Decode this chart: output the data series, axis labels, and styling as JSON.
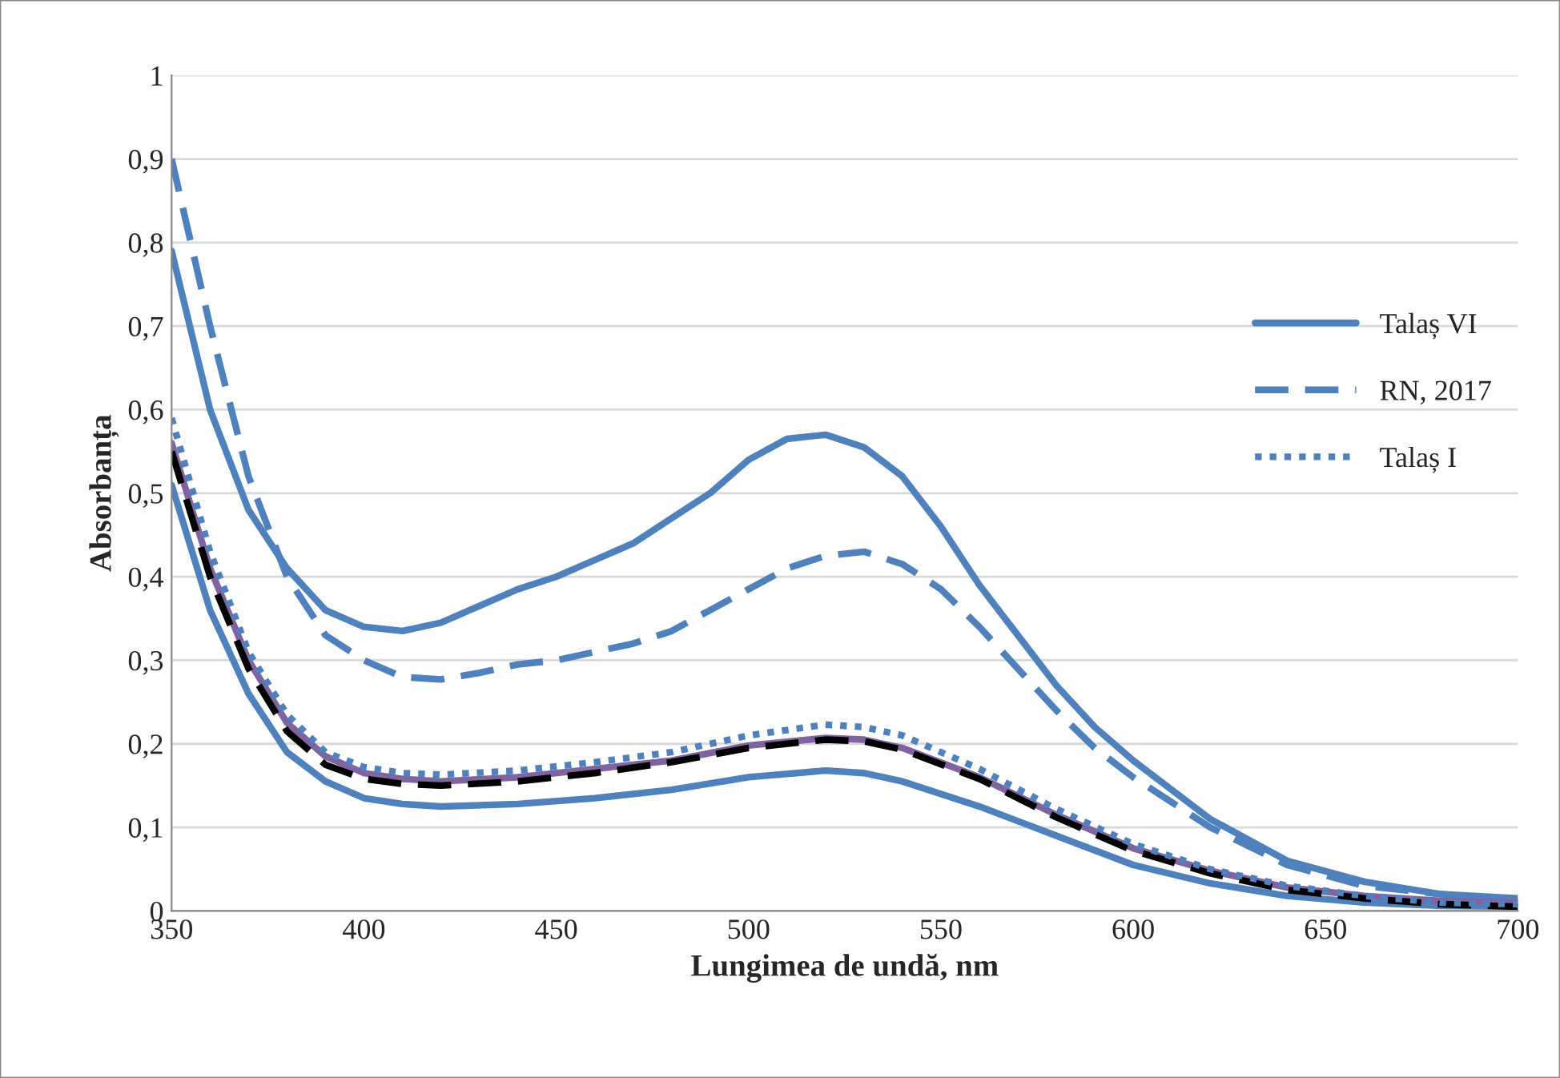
{
  "chart_data": {
    "type": "line",
    "xlabel": "Lungimea de undă, nm",
    "ylabel": "Absorbanța",
    "xlim": [
      350,
      700
    ],
    "xticks": [
      350,
      400,
      450,
      500,
      550,
      600,
      650,
      700
    ],
    "ylim": [
      0,
      1
    ],
    "yticks": [
      0,
      {
        "value": 0.1,
        "label": "0,1"
      },
      {
        "value": 0.2,
        "label": "0,2"
      },
      {
        "value": 0.3,
        "label": "0,3"
      },
      {
        "value": 0.4,
        "label": "0,4"
      },
      {
        "value": 0.5,
        "label": "0,5"
      },
      {
        "value": 0.6,
        "label": "0,6"
      },
      {
        "value": 0.7,
        "label": "0,7"
      },
      {
        "value": 0.8,
        "label": "0,8"
      },
      {
        "value": 0.9,
        "label": "0,9"
      },
      1
    ],
    "grid": "y",
    "legend": "right",
    "marker": "none",
    "series": [
      {
        "name": "Talaș VI",
        "color": "#4f81bd",
        "line_style": "solid",
        "x": [
          350,
          360,
          370,
          380,
          390,
          400,
          410,
          420,
          430,
          440,
          450,
          460,
          470,
          480,
          490,
          500,
          510,
          520,
          530,
          540,
          550,
          560,
          570,
          580,
          590,
          600,
          620,
          640,
          660,
          680,
          700
        ],
        "values": [
          0.79,
          0.6,
          0.48,
          0.41,
          0.36,
          0.34,
          0.335,
          0.345,
          0.365,
          0.385,
          0.4,
          0.42,
          0.44,
          0.47,
          0.5,
          0.54,
          0.565,
          0.57,
          0.555,
          0.52,
          0.46,
          0.39,
          0.33,
          0.27,
          0.22,
          0.18,
          0.11,
          0.06,
          0.035,
          0.02,
          0.015
        ]
      },
      {
        "name": "RN, 2017",
        "color": "#4f81bd",
        "line_style": "dashed",
        "x": [
          350,
          360,
          370,
          380,
          390,
          400,
          410,
          420,
          430,
          440,
          450,
          460,
          470,
          480,
          490,
          500,
          510,
          520,
          530,
          540,
          550,
          560,
          570,
          580,
          590,
          600,
          620,
          640,
          660,
          680,
          700
        ],
        "values": [
          0.9,
          0.7,
          0.52,
          0.4,
          0.33,
          0.3,
          0.28,
          0.277,
          0.285,
          0.295,
          0.3,
          0.31,
          0.32,
          0.335,
          0.36,
          0.385,
          0.41,
          0.425,
          0.43,
          0.415,
          0.385,
          0.34,
          0.29,
          0.24,
          0.195,
          0.16,
          0.1,
          0.055,
          0.03,
          0.02,
          0.012
        ]
      },
      {
        "color": "#4f81bd",
        "line_style": "solid",
        "x": [
          350,
          360,
          370,
          380,
          390,
          400,
          410,
          420,
          440,
          460,
          480,
          500,
          520,
          530,
          540,
          560,
          580,
          600,
          620,
          640,
          660,
          680,
          700
        ],
        "values": [
          0.51,
          0.36,
          0.26,
          0.19,
          0.155,
          0.135,
          0.128,
          0.125,
          0.128,
          0.135,
          0.145,
          0.16,
          0.168,
          0.165,
          0.155,
          0.125,
          0.09,
          0.055,
          0.033,
          0.018,
          0.01,
          0.006,
          0.005
        ]
      },
      {
        "color": "#8064a2",
        "line_style": "solid",
        "x": [
          350,
          360,
          370,
          380,
          390,
          400,
          410,
          420,
          440,
          460,
          480,
          500,
          520,
          530,
          540,
          560,
          580,
          600,
          620,
          640,
          660,
          680,
          700
        ],
        "values": [
          0.56,
          0.41,
          0.3,
          0.225,
          0.185,
          0.165,
          0.158,
          0.155,
          0.16,
          0.17,
          0.18,
          0.198,
          0.207,
          0.205,
          0.195,
          0.16,
          0.115,
          0.075,
          0.048,
          0.028,
          0.018,
          0.012,
          0.01
        ]
      },
      {
        "color": "#000000",
        "line_style": "dashed",
        "x": [
          350,
          360,
          370,
          380,
          390,
          400,
          410,
          420,
          440,
          460,
          480,
          500,
          520,
          530,
          540,
          560,
          580,
          600,
          620,
          640,
          660,
          680,
          700
        ],
        "values": [
          0.55,
          0.4,
          0.29,
          0.215,
          0.175,
          0.158,
          0.152,
          0.15,
          0.155,
          0.165,
          0.178,
          0.195,
          0.205,
          0.203,
          0.193,
          0.158,
          0.112,
          0.072,
          0.045,
          0.025,
          0.015,
          0.008,
          0.005
        ]
      },
      {
        "name": "Talaș I",
        "color": "#4f81bd",
        "line_style": "dotted",
        "x": [
          350,
          360,
          370,
          380,
          390,
          400,
          410,
          420,
          440,
          460,
          480,
          500,
          520,
          530,
          540,
          560,
          580,
          600,
          620,
          640,
          660,
          680,
          700
        ],
        "values": [
          0.59,
          0.43,
          0.31,
          0.235,
          0.19,
          0.172,
          0.165,
          0.163,
          0.168,
          0.178,
          0.19,
          0.21,
          0.223,
          0.22,
          0.21,
          0.17,
          0.122,
          0.08,
          0.05,
          0.03,
          0.018,
          0.01,
          0.008
        ]
      }
    ]
  }
}
